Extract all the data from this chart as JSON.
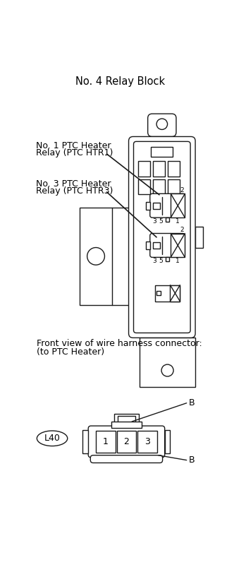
{
  "title": "No. 4 Relay Block",
  "label1_line1": "No. 1 PTC Heater",
  "label1_line2": "Relay (PTC HTR1)",
  "label2_line1": "No. 3 PTC Heater",
  "label2_line2": "Relay (PTC HTR3)",
  "bottom_title_line1": "Front view of wire harness connector:",
  "bottom_title_line2": "(to PTC Heater)",
  "connector_label": "L40",
  "pin_labels": [
    "1",
    "2",
    "3"
  ],
  "bg_color": "#ffffff",
  "line_color": "#1a1a1a",
  "text_color": "#000000",
  "font_size_title": 10.5,
  "font_size_label": 9,
  "font_size_pin": 9,
  "font_size_connector": 9
}
